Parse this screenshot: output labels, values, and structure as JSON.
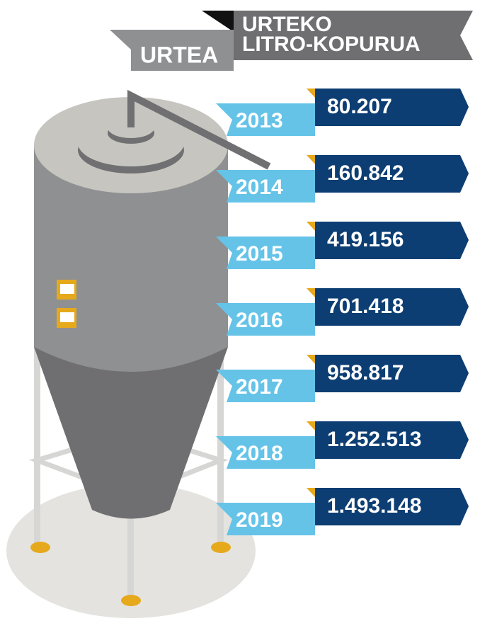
{
  "header": {
    "year_label": "URTEA",
    "value_label_line1": "URTEKO",
    "value_label_line2": "LITRO-KOPURUA"
  },
  "rows": [
    {
      "year": "2013",
      "value": "80.207"
    },
    {
      "year": "2014",
      "value": "160.842"
    },
    {
      "year": "2015",
      "value": "419.156"
    },
    {
      "year": "2016",
      "value": "701.418"
    },
    {
      "year": "2017",
      "value": "958.817"
    },
    {
      "year": "2018",
      "value": "1.252.513"
    },
    {
      "year": "2019",
      "value": "1.493.148"
    }
  ]
}
